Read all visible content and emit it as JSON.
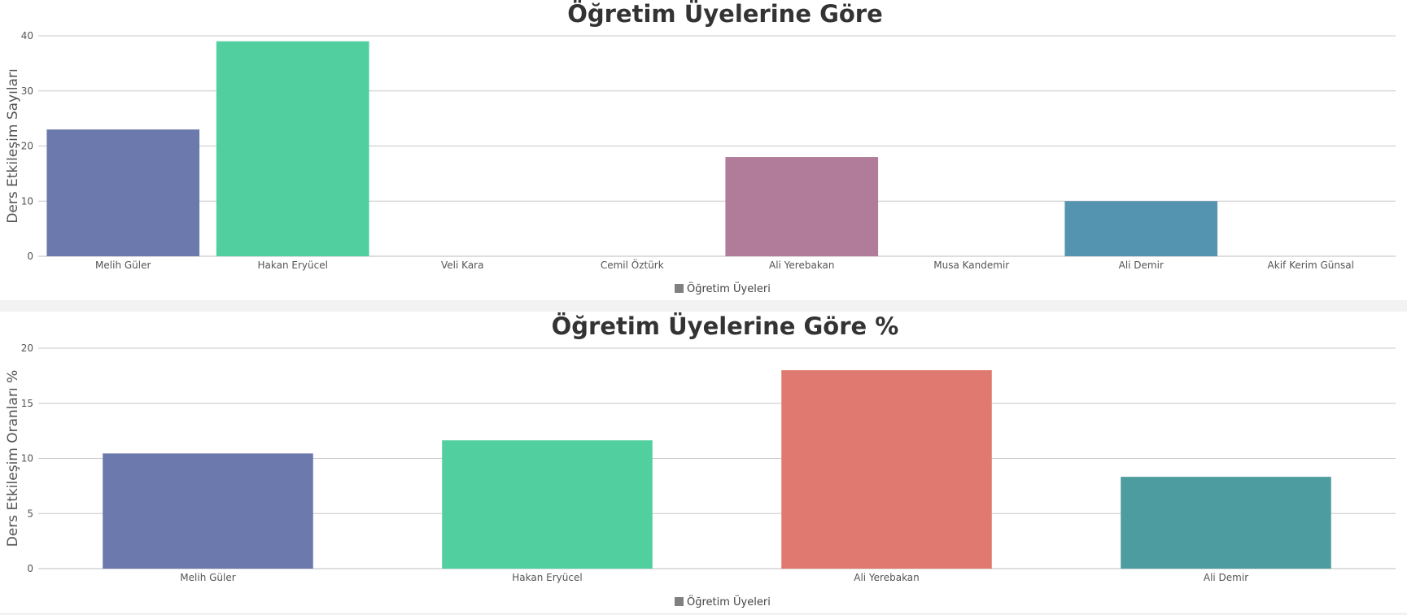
{
  "chart_data": [
    {
      "type": "bar",
      "title": "Öğretim Üyelerine Göre",
      "xlabel": "",
      "ylabel": "Ders Etkileşim Sayıları",
      "ylim": [
        0,
        40
      ],
      "yticks": [
        0,
        10,
        20,
        30,
        40
      ],
      "categories": [
        "Melih Güler",
        "Hakan Eryücel",
        "Veli Kara",
        "Cemil Öztürk",
        "Ali Yerebakan",
        "Musa Kandemir",
        "Ali Demir",
        "Akif Kerim Günsal"
      ],
      "series": [
        {
          "name": "Öğretim Üyeleri",
          "values": [
            23,
            39,
            0,
            0,
            18,
            0,
            10,
            0
          ]
        }
      ],
      "colors": [
        "#6c79ad",
        "#52cf9f",
        "#e37c6f",
        "#4f9da0",
        "#b07c99",
        "#6c79ad",
        "#5594b0",
        "#52cf9f"
      ],
      "legend_color": "#808080",
      "grid": true,
      "legend_position": "bottom"
    },
    {
      "type": "bar",
      "title": "Öğretim Üyelerine Göre %",
      "xlabel": "",
      "ylabel": "Ders Etkileşim Oranları %",
      "ylim": [
        0,
        20
      ],
      "yticks": [
        0,
        5,
        10,
        15,
        20
      ],
      "categories": [
        "Melih Güler",
        "Hakan Eryücel",
        "Ali Yerebakan",
        "Ali Demir"
      ],
      "series": [
        {
          "name": "Öğretim Üyeleri",
          "values": [
            10.45,
            11.64,
            18,
            8.33
          ]
        }
      ],
      "colors": [
        "#6c79ad",
        "#52cf9f",
        "#e07a70",
        "#4d9ca0"
      ],
      "legend_color": "#808080",
      "grid": true,
      "legend_position": "bottom"
    }
  ]
}
